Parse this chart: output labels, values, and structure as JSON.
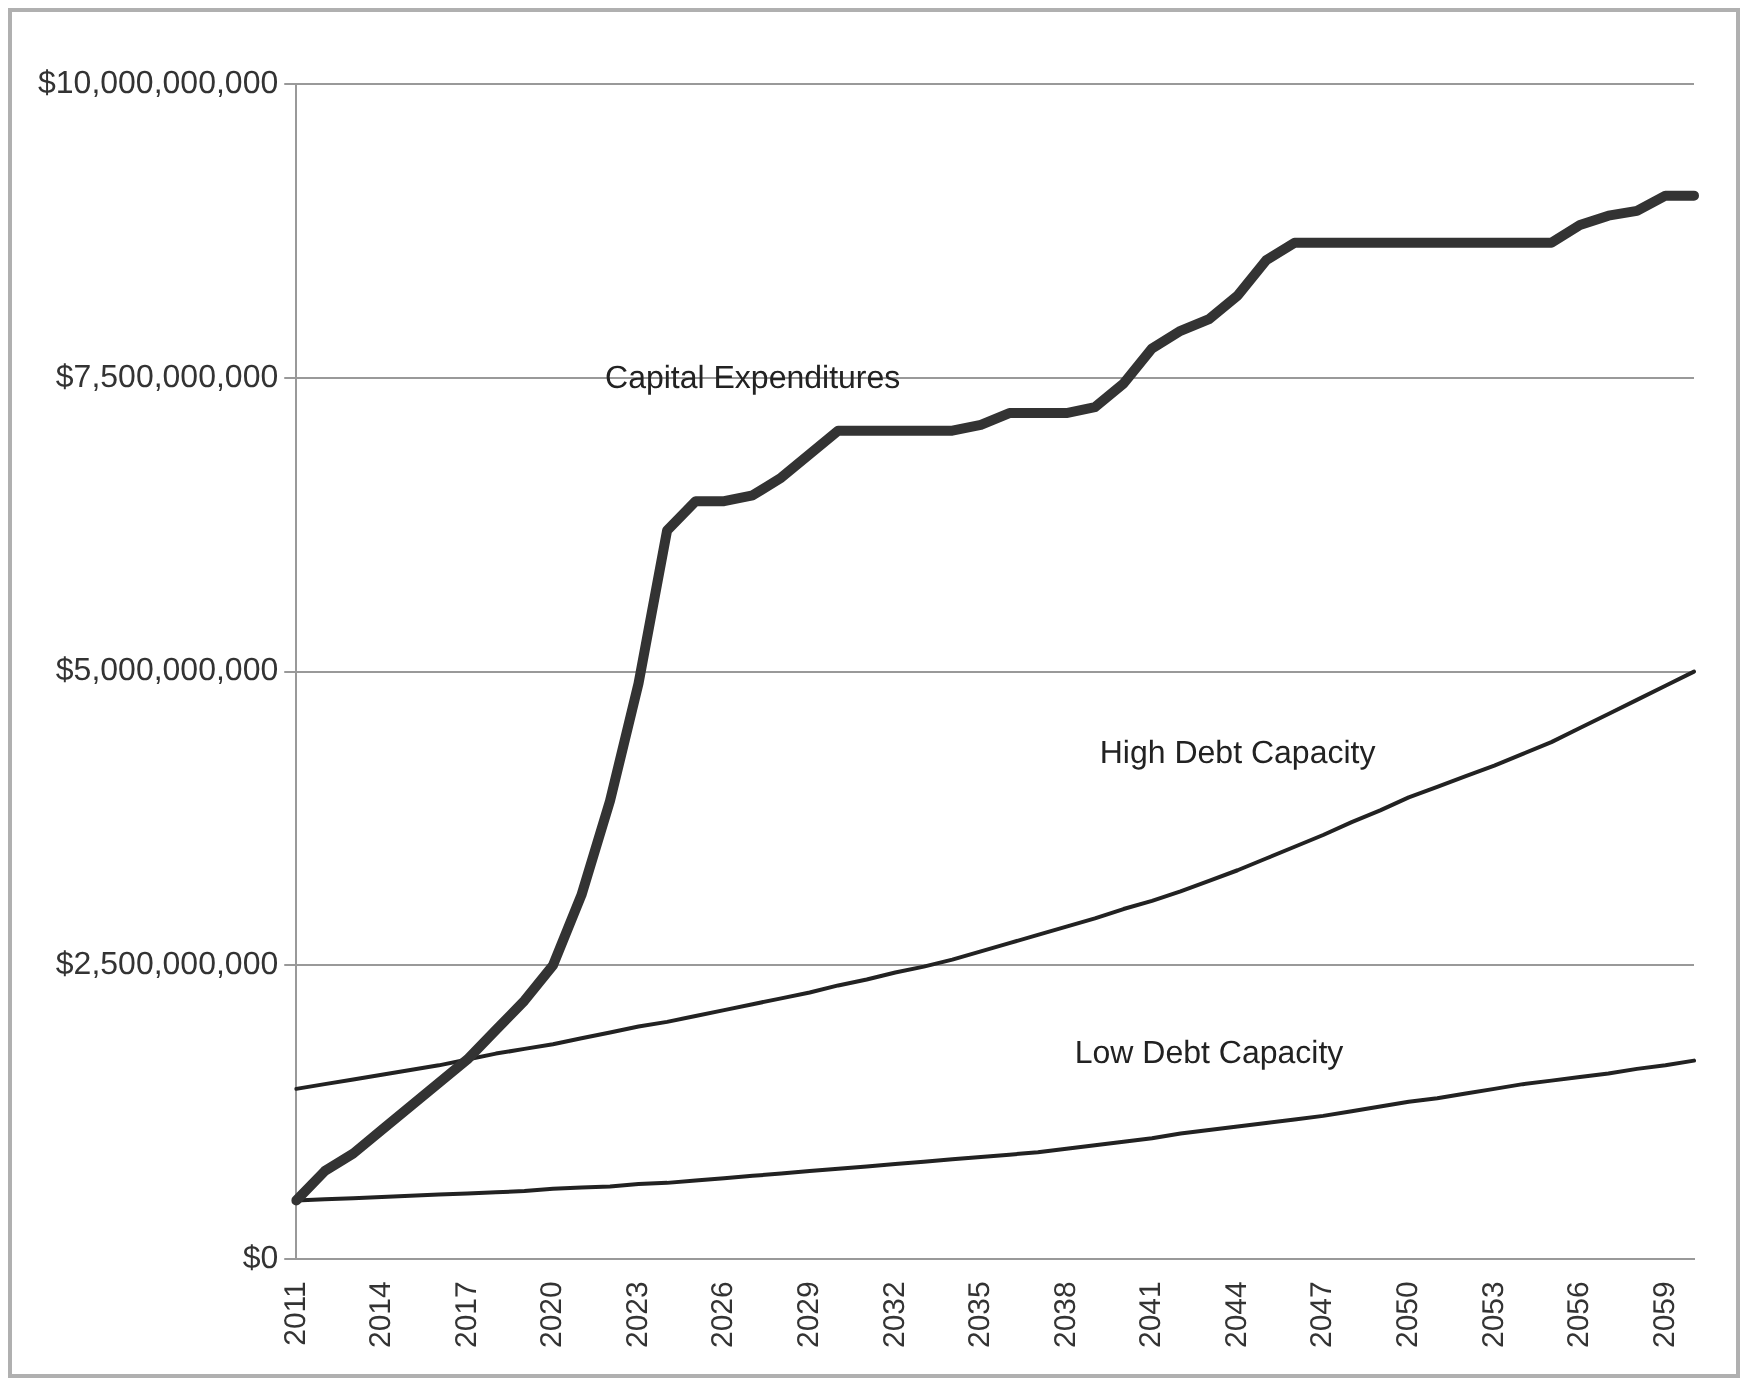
{
  "chart_data": {
    "type": "line",
    "categories": [
      "2011",
      null,
      null,
      "2014",
      null,
      null,
      "2017",
      null,
      null,
      "2020",
      null,
      null,
      "2023",
      null,
      null,
      "2026",
      null,
      null,
      "2029",
      null,
      null,
      "2032",
      null,
      null,
      "2035",
      null,
      null,
      "2038",
      null,
      null,
      "2041",
      null,
      null,
      "2044",
      null,
      null,
      "2047",
      null,
      null,
      "2050",
      null,
      null,
      "2053",
      null,
      null,
      "2056",
      null,
      null,
      "2059",
      null
    ],
    "series": [
      {
        "name": "Capital Expenditures",
        "color": "#333333",
        "values": [
          500000000.0,
          750000000.0,
          900000000.0,
          1100000000.0,
          1300000000.0,
          1500000000.0,
          1700000000.0,
          1950000000.0,
          2200000000.0,
          2500000000.0,
          3100000000.0,
          3900000000.0,
          4900000000.0,
          6200000000.0,
          6450000000.0,
          6450000000.0,
          6500000000.0,
          6650000000.0,
          6850000000.0,
          7050000000.0,
          7050000000.0,
          7050000000.0,
          7050000000.0,
          7050000000.0,
          7100000000.0,
          7200000000.0,
          7200000000.0,
          7200000000.0,
          7250000000.0,
          7450000000.0,
          7750000000.0,
          7900000000.0,
          8000000000.0,
          8200000000.0,
          8500000000.0,
          8650000000.0,
          8650000000.0,
          8650000000.0,
          8650000000.0,
          8650000000.0,
          8650000000.0,
          8650000000.0,
          8650000000.0,
          8650000000.0,
          8650000000.0,
          8800000000.0,
          8880000000.0,
          8920000000.0,
          9050000000.0,
          9050000000.0
        ]
      },
      {
        "name": "High Debt Capacity",
        "color": "#222222",
        "values": [
          1450000000.0,
          1490000000.0,
          1530000000.0,
          1570000000.0,
          1610000000.0,
          1650000000.0,
          1700000000.0,
          1750000000.0,
          1790000000.0,
          1830000000.0,
          1880000000.0,
          1930000000.0,
          1980000000.0,
          2020000000.0,
          2070000000.0,
          2120000000.0,
          2170000000.0,
          2220000000.0,
          2270000000.0,
          2330000000.0,
          2380000000.0,
          2440000000.0,
          2490000000.0,
          2550000000.0,
          2620000000.0,
          2690000000.0,
          2760000000.0,
          2830000000.0,
          2900000000.0,
          2980000000.0,
          3050000000.0,
          3130000000.0,
          3220000000.0,
          3310000000.0,
          3410000000.0,
          3510000000.0,
          3610000000.0,
          3720000000.0,
          3820000000.0,
          3930000000.0,
          4020000000.0,
          4110000000.0,
          4200000000.0,
          4300000000.0,
          4400000000.0,
          4520000000.0,
          4640000000.0,
          4760000000.0,
          4880000000.0,
          5000000000.0
        ]
      },
      {
        "name": "Low Debt Capacity",
        "color": "#222222",
        "values": [
          500000000.0,
          510000000.0,
          520000000.0,
          530000000.0,
          540000000.0,
          550000000.0,
          560000000.0,
          570000000.0,
          580000000.0,
          600000000.0,
          610000000.0,
          620000000.0,
          640000000.0,
          650000000.0,
          670000000.0,
          690000000.0,
          710000000.0,
          730000000.0,
          750000000.0,
          770000000.0,
          790000000.0,
          810000000.0,
          830000000.0,
          850000000.0,
          870000000.0,
          890000000.0,
          910000000.0,
          940000000.0,
          970000000.0,
          1000000000.0,
          1030000000.0,
          1070000000.0,
          1100000000.0,
          1130000000.0,
          1160000000.0,
          1190000000.0,
          1220000000.0,
          1260000000.0,
          1300000000.0,
          1340000000.0,
          1370000000.0,
          1410000000.0,
          1450000000.0,
          1490000000.0,
          1520000000.0,
          1550000000.0,
          1580000000.0,
          1620000000.0,
          1650000000.0,
          1690000000.0
        ]
      }
    ],
    "ylim": [
      0,
      10000000000.0
    ],
    "yticks": [
      {
        "value": 0,
        "label": "$0"
      },
      {
        "value": 2500000000.0,
        "label": "$2,500,000,000"
      },
      {
        "value": 5000000000.0,
        "label": "$5,000,000,000"
      },
      {
        "value": 7500000000.0,
        "label": "$7,500,000,000"
      },
      {
        "value": 10000000000.0,
        "label": "$10,000,000,000"
      }
    ],
    "grid": "y",
    "legend": false,
    "marker": "none",
    "line_style": "solid"
  }
}
